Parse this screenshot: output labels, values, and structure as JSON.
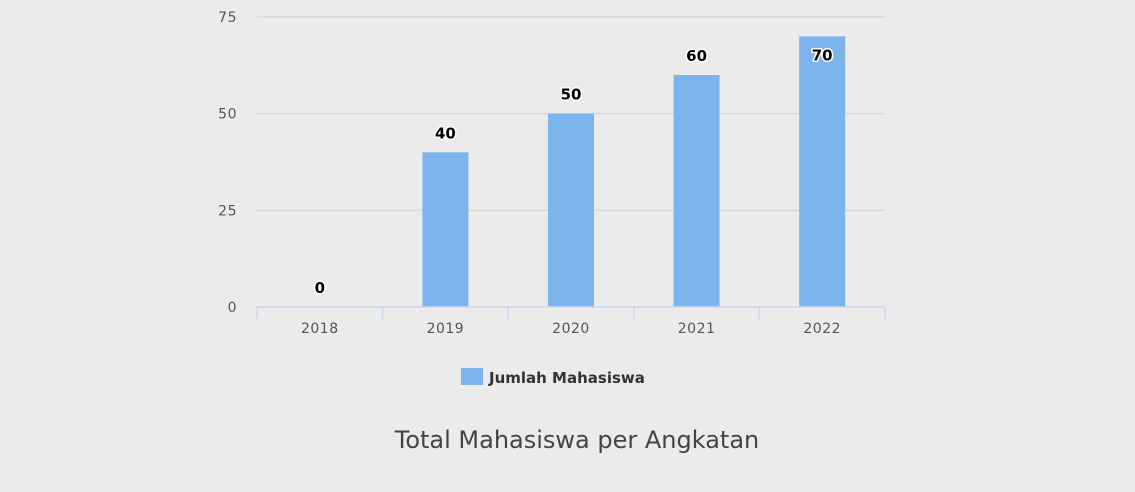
{
  "chart_data": {
    "type": "bar",
    "categories": [
      "2018",
      "2019",
      "2020",
      "2021",
      "2022"
    ],
    "series": [
      {
        "name": "Jumlah Mahasiswa",
        "values": [
          0,
          40,
          50,
          60,
          70
        ],
        "color": "#7cb5ec"
      }
    ],
    "data_labels": [
      "0",
      "40",
      "50",
      "60",
      "70"
    ],
    "title": "Total Mahasiswa per Angkatan",
    "xlabel": "",
    "ylabel": "",
    "ylim": [
      0,
      75
    ],
    "yticks": [
      0,
      25,
      50,
      75
    ],
    "ytick_labels": [
      "0",
      "25",
      "50",
      "75"
    ],
    "grid": true,
    "legend_position": "bottom-center",
    "colors": {
      "background": "#ebebeb",
      "grid": "#d8d8d8",
      "axis": "#ccd6eb",
      "bar": "#7cb5ec"
    }
  }
}
